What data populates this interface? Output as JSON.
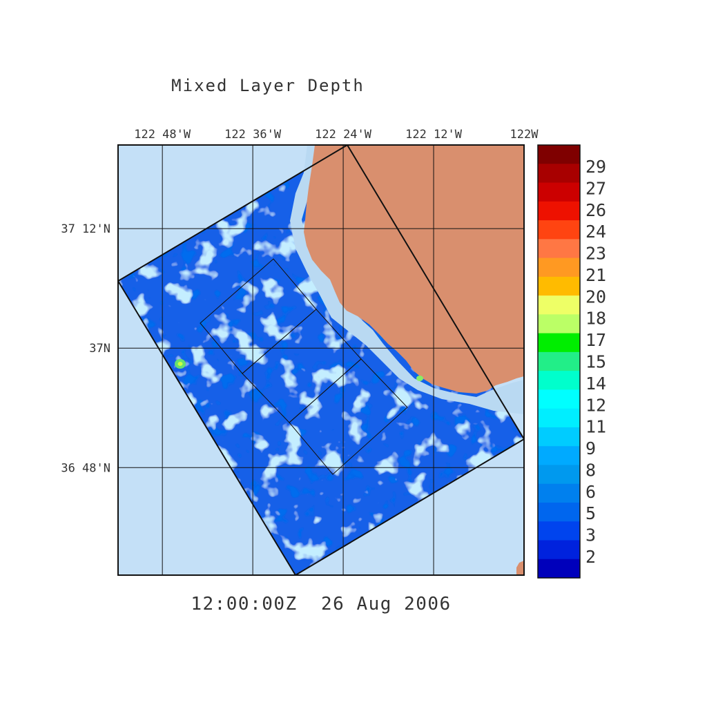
{
  "title": "Mixed Layer Depth",
  "timestamp": "12:00:00Z  26 Aug 2006",
  "map": {
    "lon_range": [
      -122.898,
      -122.0
    ],
    "lat_range": [
      36.62,
      37.34
    ],
    "lon_ticks": [
      {
        "value": -122.8,
        "label": "122 48'W"
      },
      {
        "value": -122.6,
        "label": "122 36'W"
      },
      {
        "value": -122.4,
        "label": "122 24'W"
      },
      {
        "value": -122.2,
        "label": "122 12'W"
      },
      {
        "value": -122.0,
        "label": "122W"
      }
    ],
    "lat_ticks": [
      {
        "value": 37.2,
        "label": "37 12'N"
      },
      {
        "value": 37.0,
        "label": "37N"
      },
      {
        "value": 36.8,
        "label": "36 48'N"
      }
    ],
    "grid": true,
    "land_color": "#d98f6e",
    "ocean_color": "#c4e0f7",
    "coast_color": "#b9d9f2",
    "domain_color": "#1660e8"
  },
  "colorbar": {
    "labels": [
      "29",
      "27",
      "26",
      "24",
      "23",
      "21",
      "20",
      "18",
      "17",
      "15",
      "14",
      "12",
      "11",
      "9",
      "8",
      "6",
      "5",
      "3",
      "2"
    ],
    "colors": [
      "#7f0000",
      "#a80000",
      "#cc0000",
      "#ee1100",
      "#ff4411",
      "#ff7744",
      "#ff9922",
      "#ffbb00",
      "#eeff66",
      "#bbff66",
      "#00ee00",
      "#22ee88",
      "#00ffcc",
      "#00ffff",
      "#00eeff",
      "#00ccff",
      "#00aaff",
      "#0099ee",
      "#0080ee",
      "#0066ee",
      "#0044ee",
      "#0022dd",
      "#0000bb"
    ]
  }
}
